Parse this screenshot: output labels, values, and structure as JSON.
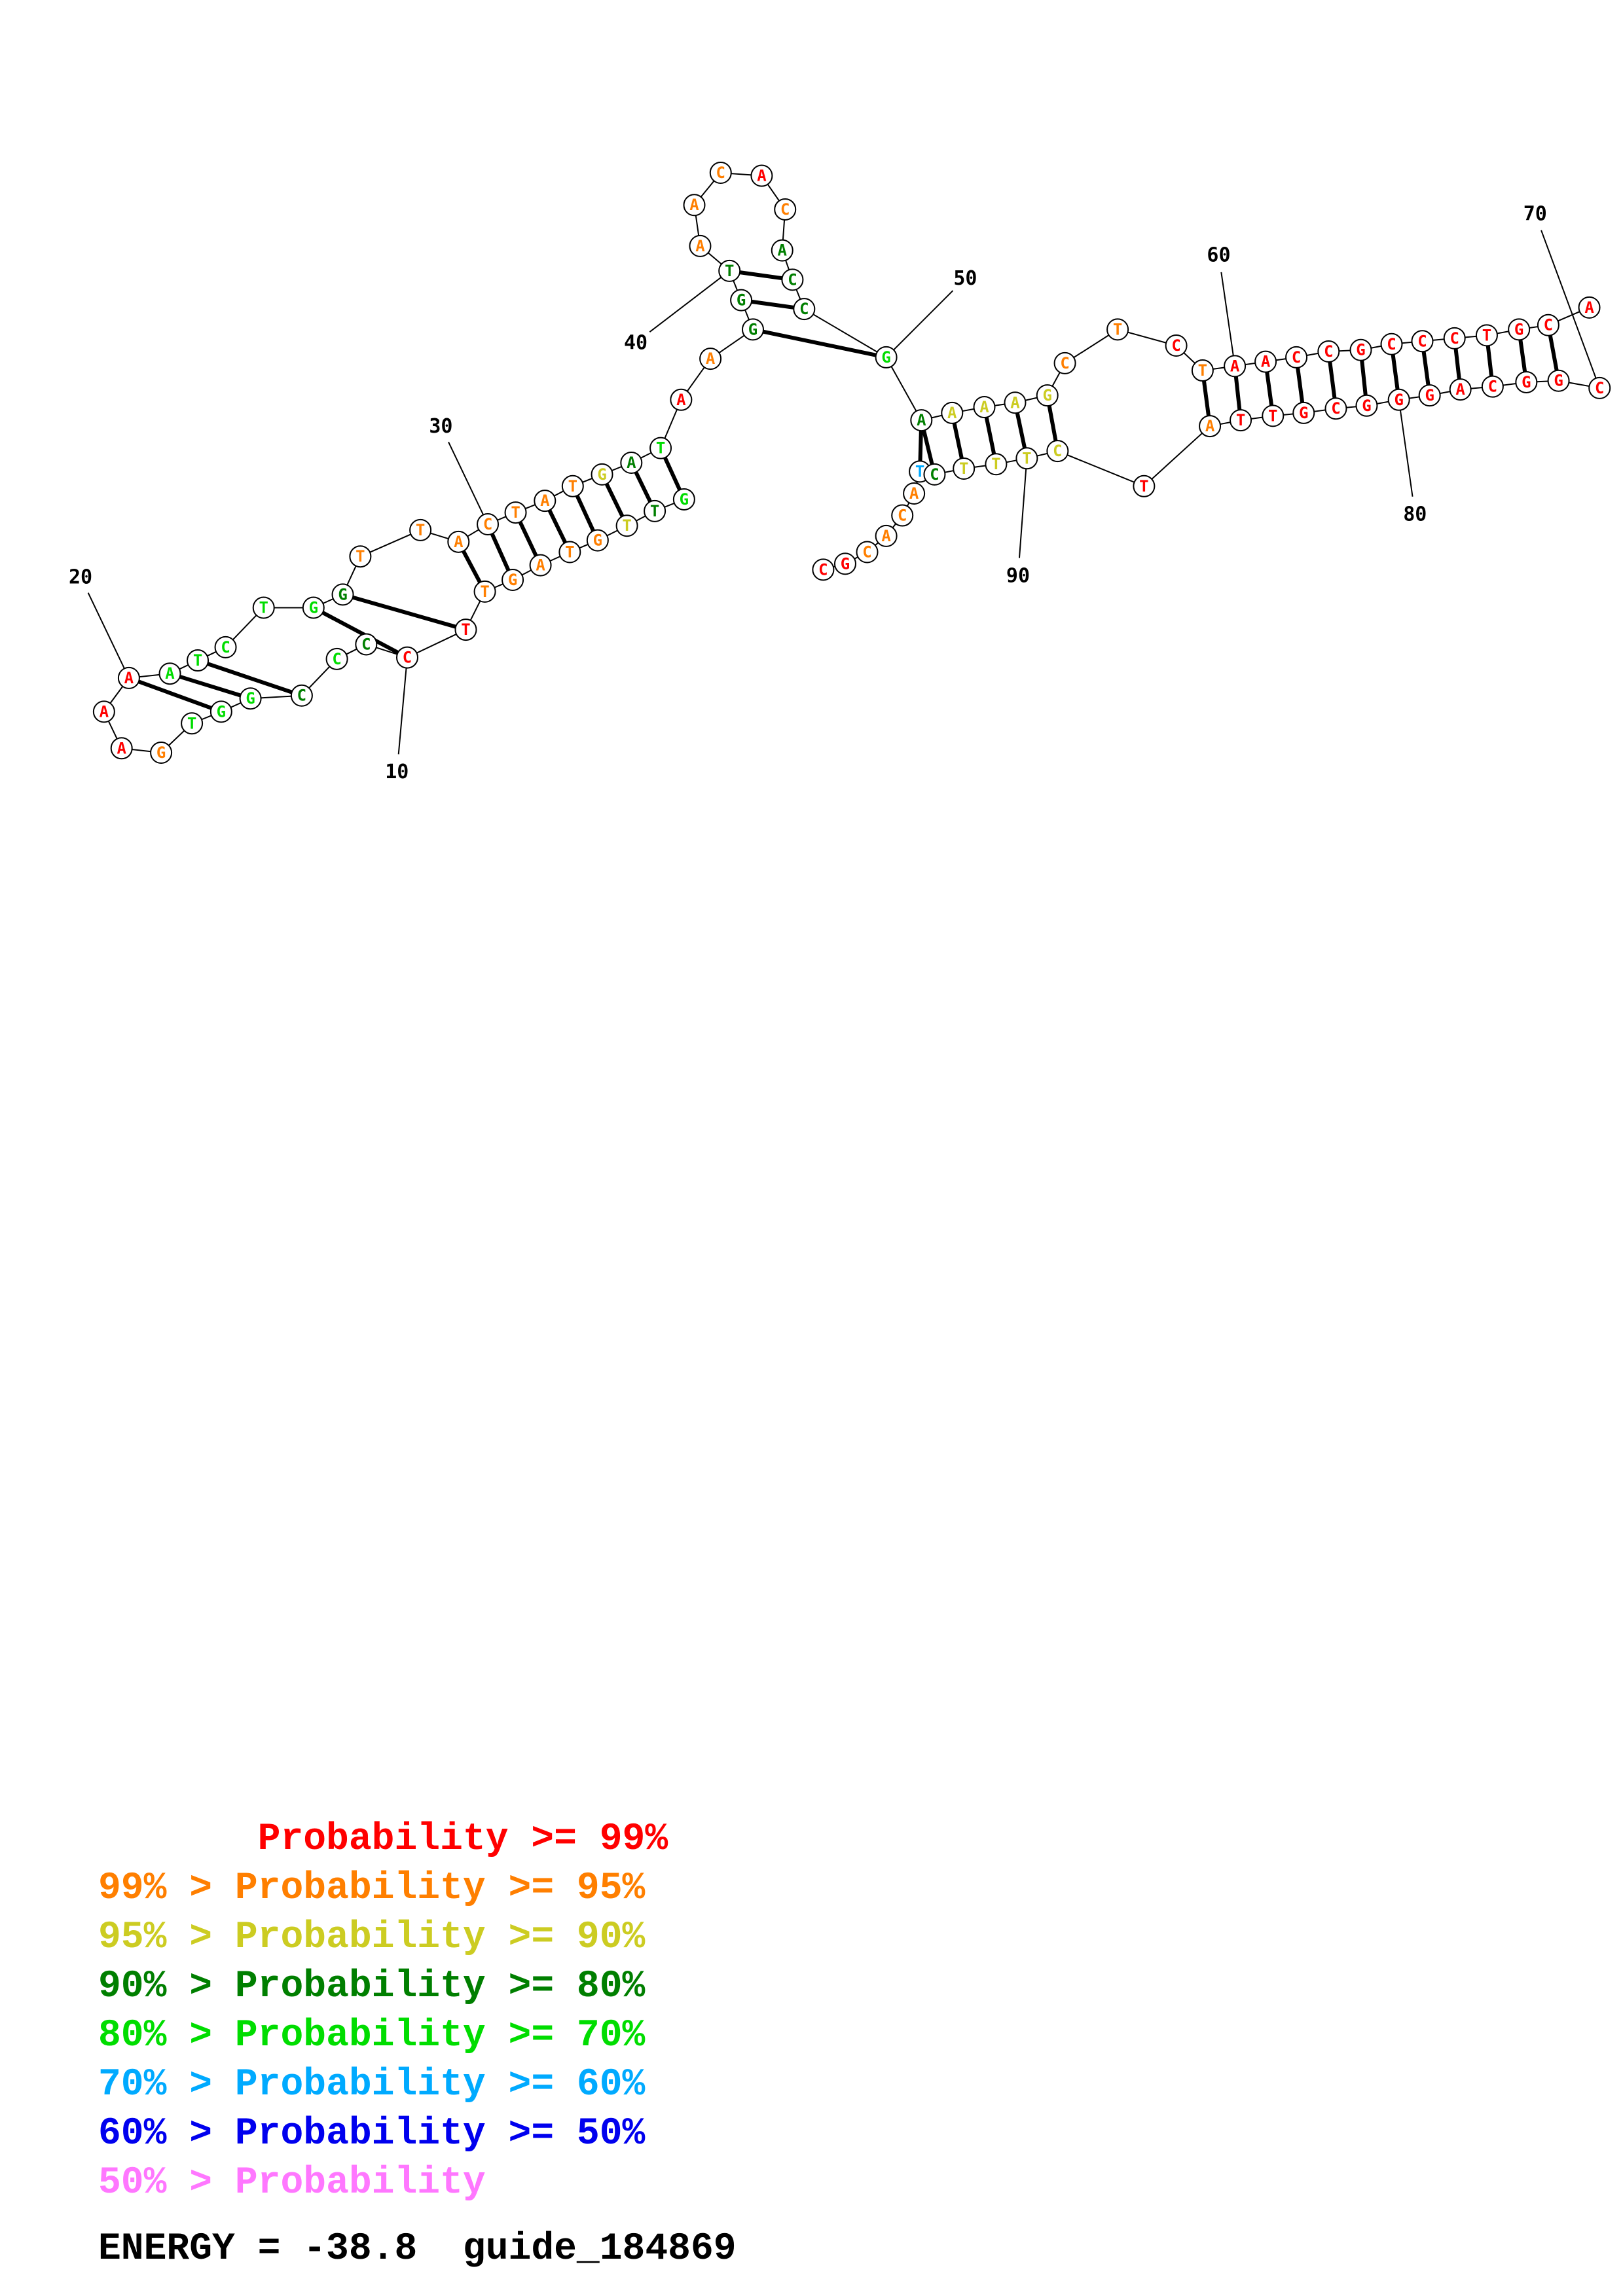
{
  "colors": {
    "p99": "#ff0000",
    "p95": "#ff7f00",
    "p90": "#cccc22",
    "p80": "#007f00",
    "p70": "#00dd00",
    "p60": "#00aaff",
    "p50": "#0000ee",
    "p0": "#ff77ff"
  },
  "sequence_display": [
    {
      "n": 1,
      "b": "C",
      "c": "p99"
    },
    {
      "n": 2,
      "b": "G",
      "c": "p99"
    },
    {
      "n": 3,
      "b": "C",
      "c": "p95"
    },
    {
      "n": 4,
      "b": "A",
      "c": "p95"
    },
    {
      "n": 5,
      "b": "C",
      "c": "p95"
    },
    {
      "n": 6,
      "b": "A",
      "c": "p95"
    },
    {
      "n": 7,
      "b": "T",
      "c": "p99"
    },
    {
      "n": 8,
      "b": "T",
      "c": "p99"
    },
    {
      "n": 9,
      "b": "C",
      "c": "p80"
    },
    {
      "n": 10,
      "b": "C",
      "c": "p99"
    },
    {
      "n": 11,
      "b": "C",
      "c": "p80"
    },
    {
      "n": 12,
      "b": "C",
      "c": "p70"
    },
    {
      "n": 13,
      "b": "C",
      "c": "p80"
    },
    {
      "n": 14,
      "b": "G",
      "c": "p70"
    },
    {
      "n": 15,
      "b": "G",
      "c": "p70"
    },
    {
      "n": 16,
      "b": "T",
      "c": "p70"
    },
    {
      "n": 17,
      "b": "G",
      "c": "p95"
    },
    {
      "n": 18,
      "b": "A",
      "c": "p99"
    },
    {
      "n": 19,
      "b": "A",
      "c": "p99"
    },
    {
      "n": 20,
      "b": "A",
      "c": "p99"
    },
    {
      "n": 21,
      "b": "A",
      "c": "p70"
    },
    {
      "n": 22,
      "b": "T",
      "c": "p70"
    },
    {
      "n": 23,
      "b": "C",
      "c": "p70"
    },
    {
      "n": 24,
      "b": "T",
      "c": "p70"
    },
    {
      "n": 25,
      "b": "G",
      "c": "p70"
    },
    {
      "n": 26,
      "b": "G",
      "c": "p80"
    },
    {
      "n": 27,
      "b": "T",
      "c": "p95"
    },
    {
      "n": 28,
      "b": "T",
      "c": "p95"
    },
    {
      "n": 29,
      "b": "A",
      "c": "p95"
    },
    {
      "n": 30,
      "b": "C",
      "c": "p95"
    },
    {
      "n": 31,
      "b": "T",
      "c": "p95"
    },
    {
      "n": 32,
      "b": "A",
      "c": "p95"
    },
    {
      "n": 33,
      "b": "T",
      "c": "p95"
    },
    {
      "n": 34,
      "b": "G",
      "c": "p90"
    },
    {
      "n": 35,
      "b": "A",
      "c": "p80"
    },
    {
      "n": 36,
      "b": "T",
      "c": "p70"
    },
    {
      "n": 37,
      "b": "A",
      "c": "p99"
    },
    {
      "n": 38,
      "b": "A",
      "c": "p95"
    },
    {
      "n": 39,
      "b": "G",
      "c": "p80"
    },
    {
      "n": 40,
      "b": "G",
      "c": "p80"
    },
    {
      "n": 41,
      "b": "T",
      "c": "p80"
    },
    {
      "n": 42,
      "b": "A",
      "c": "p95"
    },
    {
      "n": 43,
      "b": "A",
      "c": "p95"
    },
    {
      "n": 44,
      "b": "C",
      "c": "p95"
    },
    {
      "n": 45,
      "b": "A",
      "c": "p99"
    },
    {
      "n": 46,
      "b": "C",
      "c": "p95"
    },
    {
      "n": 47,
      "b": "A",
      "c": "p80"
    },
    {
      "n": 48,
      "b": "C",
      "c": "p80"
    },
    {
      "n": 49,
      "b": "C",
      "c": "p80"
    },
    {
      "n": 50,
      "b": "G",
      "c": "p70"
    },
    {
      "n": 51,
      "b": "A",
      "c": "p80"
    },
    {
      "n": 52,
      "b": "A",
      "c": "p90"
    },
    {
      "n": 53,
      "b": "A",
      "c": "p90"
    },
    {
      "n": 54,
      "b": "A",
      "c": "p90"
    },
    {
      "n": 55,
      "b": "G",
      "c": "p90"
    },
    {
      "n": 56,
      "b": "C",
      "c": "p95"
    },
    {
      "n": 57,
      "b": "T",
      "c": "p95"
    },
    {
      "n": 58,
      "b": "C",
      "c": "p99"
    },
    {
      "n": 59,
      "b": "T",
      "c": "p95"
    },
    {
      "n": 60,
      "b": "A",
      "c": "p99"
    },
    {
      "n": 61,
      "b": "A",
      "c": "p99"
    },
    {
      "n": 62,
      "b": "C",
      "c": "p99"
    },
    {
      "n": 63,
      "b": "G",
      "c": "p99"
    },
    {
      "n": 64,
      "b": "C",
      "c": "p99"
    },
    {
      "n": 65,
      "b": "C",
      "c": "p99"
    },
    {
      "n": 66,
      "b": "C",
      "c": "p99"
    },
    {
      "n": 67,
      "b": "T",
      "c": "p99"
    },
    {
      "n": 68,
      "b": "G",
      "c": "p99"
    },
    {
      "n": 69,
      "b": "C",
      "c": "p99"
    },
    {
      "n": 70,
      "b": "C",
      "c": "p99"
    },
    {
      "n": 71,
      "b": "A",
      "c": "p99"
    },
    {
      "n": 74,
      "b": "C",
      "c": "p99"
    },
    {
      "n": 75,
      "b": "G",
      "c": "p99"
    },
    {
      "n": 76,
      "b": "G",
      "c": "p99"
    },
    {
      "n": 77,
      "b": "C",
      "c": "p99"
    },
    {
      "n": 78,
      "b": "A",
      "c": "p99"
    },
    {
      "n": 79,
      "b": "G",
      "c": "p99"
    },
    {
      "n": 80,
      "b": "G",
      "c": "p99"
    },
    {
      "n": 81,
      "b": "C",
      "c": "p99"
    },
    {
      "n": 82,
      "b": "G",
      "c": "p99"
    },
    {
      "n": 83,
      "b": "T",
      "c": "p99"
    },
    {
      "n": 84,
      "b": "T",
      "c": "p99"
    },
    {
      "n": 85,
      "b": "A",
      "c": "p95"
    },
    {
      "n": 86,
      "b": "T",
      "c": "p99"
    },
    {
      "n": 87,
      "b": "C",
      "c": "p90"
    },
    {
      "n": 88,
      "b": "T",
      "c": "p90"
    },
    {
      "n": 89,
      "b": "T",
      "c": "p90"
    },
    {
      "n": 90,
      "b": "T",
      "c": "p90"
    },
    {
      "n": 91,
      "b": "C",
      "c": "p80"
    },
    {
      "n": 92,
      "b": "T",
      "c": "p60"
    }
  ],
  "position_labels": [
    "10",
    "20",
    "30",
    "40",
    "50",
    "60",
    "70",
    "80",
    "90"
  ],
  "legend": [
    {
      "prefix": "       ",
      "suffix": "Probability >= 99%",
      "c": "p99"
    },
    {
      "prefix": "99% > ",
      "suffix": "Probability >= 95%",
      "c": "p95"
    },
    {
      "prefix": "95% > ",
      "suffix": "Probability >= 90%",
      "c": "p90"
    },
    {
      "prefix": "90% > ",
      "suffix": "Probability >= 80%",
      "c": "p80"
    },
    {
      "prefix": "80% > ",
      "suffix": "Probability >= 70%",
      "c": "p70"
    },
    {
      "prefix": "70% > ",
      "suffix": "Probability >= 60%",
      "c": "p60"
    },
    {
      "prefix": "60% > ",
      "suffix": "Probability >= 50%",
      "c": "p50"
    },
    {
      "prefix": "50% > ",
      "suffix": "Probability",
      "c": "p0"
    }
  ],
  "energy": {
    "label": "ENERGY = -38.8",
    "name": "guide_184869"
  }
}
